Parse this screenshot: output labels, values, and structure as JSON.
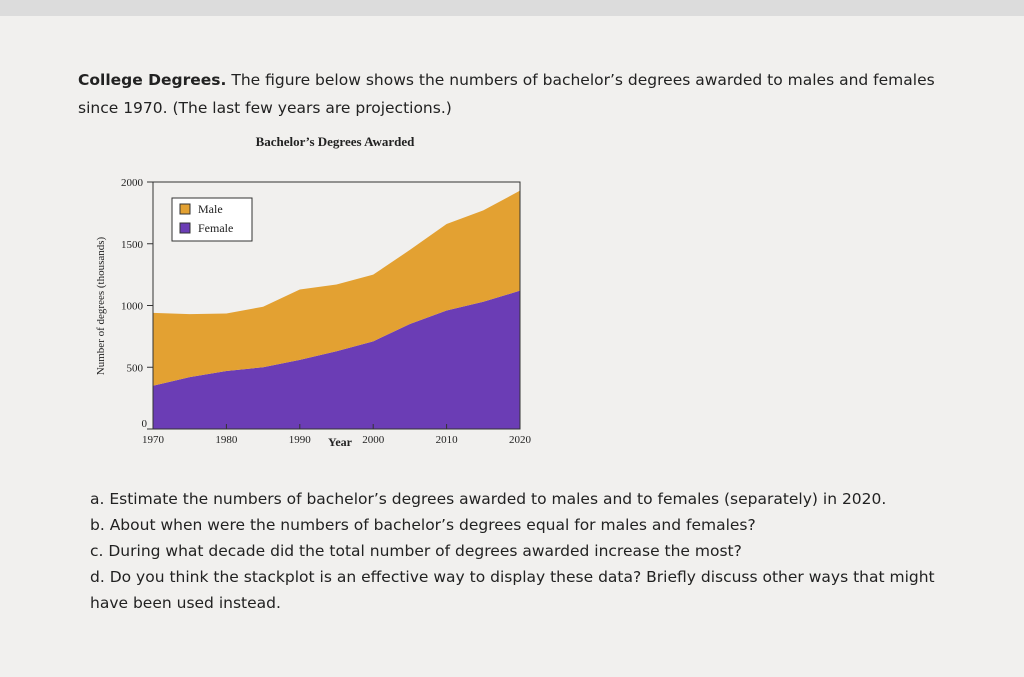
{
  "intro": {
    "lead": "College Degrees.",
    "text": "The figure below shows the numbers of bachelor’s degrees awarded to males and females since 1970. (The last few years are projections.)"
  },
  "chart_data": {
    "type": "stacked-area",
    "title": "Bachelor’s Degrees Awarded",
    "x": [
      1970,
      1975,
      1980,
      1985,
      1990,
      1995,
      2000,
      2005,
      2010,
      2015,
      2020
    ],
    "series": [
      {
        "name": "Male",
        "color": "#e3a132",
        "values": [
          590,
          510,
          465,
          490,
          570,
          540,
          540,
          600,
          700,
          740,
          810
        ]
      },
      {
        "name": "Female",
        "color": "#6b3db5",
        "values": [
          350,
          420,
          470,
          500,
          560,
          630,
          710,
          850,
          960,
          1030,
          1120
        ]
      }
    ],
    "xlim": [
      1970,
      2020
    ],
    "xticks": [
      1970,
      1980,
      1990,
      2000,
      2010,
      2020
    ],
    "ylim": [
      0,
      2000
    ],
    "yticks": [
      0,
      500,
      1000,
      1500,
      2000
    ],
    "xlabel": "Year",
    "ylabel": "Number of degrees (thousands)",
    "legend": "upper-left"
  },
  "questions": [
    "a. Estimate the numbers of bachelor’s degrees awarded to males and to females (separately) in 2020.",
    "b. About when were the numbers of bachelor’s degrees equal for males and females?",
    "c. During what decade did the total number of degrees awarded increase the most?",
    "d. Do you think the stackplot is an effective way to display these data? Briefly discuss other ways that might have been used instead."
  ]
}
